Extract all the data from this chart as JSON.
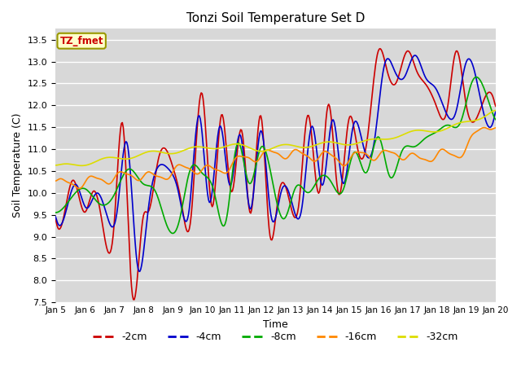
{
  "title": "Tonzi Soil Temperature Set D",
  "xlabel": "Time",
  "ylabel": "Soil Temperature (C)",
  "ylim": [
    7.5,
    13.75
  ],
  "yticks": [
    7.5,
    8.0,
    8.5,
    9.0,
    9.5,
    10.0,
    10.5,
    11.0,
    11.5,
    12.0,
    12.5,
    13.0,
    13.5
  ],
  "bg_color": "#d8d8d8",
  "fig_color": "#ffffff",
  "grid_color": "#ffffff",
  "label_box_text": "TZ_fmet",
  "label_box_facecolor": "#ffffcc",
  "label_box_edgecolor": "#999900",
  "label_box_textcolor": "#cc0000",
  "series_colors": {
    "-2cm": "#cc0000",
    "-4cm": "#0000cc",
    "-8cm": "#00aa00",
    "-16cm": "#ff8800",
    "-32cm": "#dddd00"
  },
  "xtick_labels": [
    "Jan 5",
    "Jan 6",
    "Jan 7",
    "Jan 8",
    "Jan 9",
    "Jan 10",
    "Jan 11",
    "Jan 12",
    "Jan 13",
    "Jan 14",
    "Jan 15",
    "Jan 16",
    "Jan 17",
    "Jan 18",
    "Jan 19",
    "Jan 20"
  ],
  "figsize": [
    6.4,
    4.8
  ],
  "dpi": 100
}
